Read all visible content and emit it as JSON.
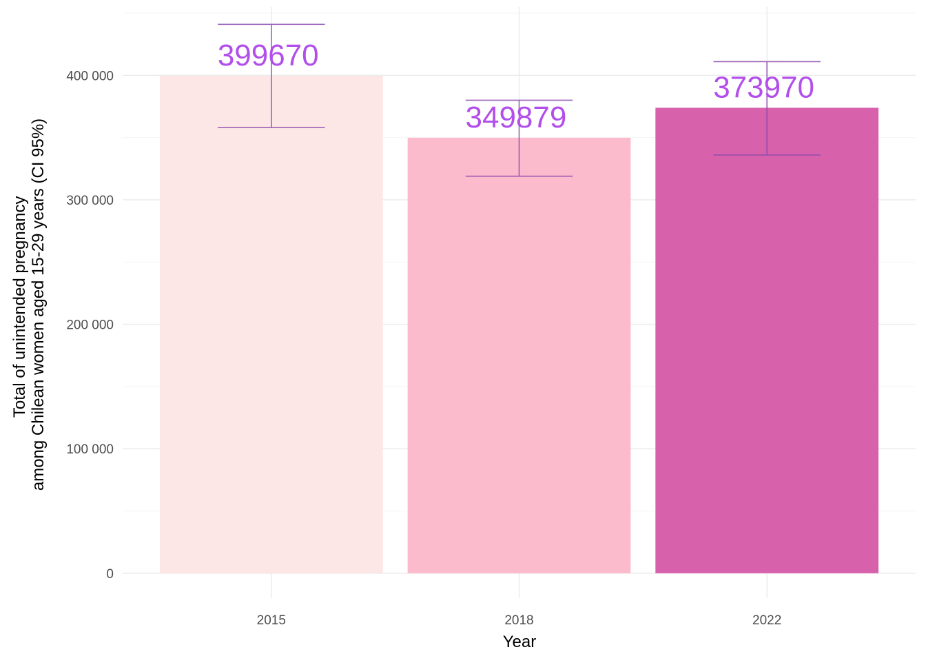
{
  "chart_data": {
    "type": "bar",
    "categories": [
      "2015",
      "2018",
      "2022"
    ],
    "values": [
      399670,
      349879,
      373970
    ],
    "value_labels": [
      "399670",
      "349879",
      "373970"
    ],
    "ci_lower": [
      358000,
      319000,
      336000
    ],
    "ci_upper": [
      441000,
      380000,
      411000
    ],
    "bar_colors": [
      "#FDE6E6",
      "#FCBACB",
      "#D75EAA"
    ],
    "label_color": "#B24FEB",
    "errorbar_color": "#8B4AAE",
    "xlabel": "Year",
    "ylabel_lines": [
      "Total of unintended pregnancy",
      "among Chilean women aged 15-29 years (CI 95%)"
    ],
    "y_ticks": [
      0,
      100000,
      200000,
      300000,
      400000
    ],
    "y_tick_labels": [
      "0",
      "100 000",
      "200 000",
      "300 000",
      "400 000"
    ],
    "ylim": [
      -20000,
      455000
    ],
    "grid": true,
    "legend": "none"
  }
}
